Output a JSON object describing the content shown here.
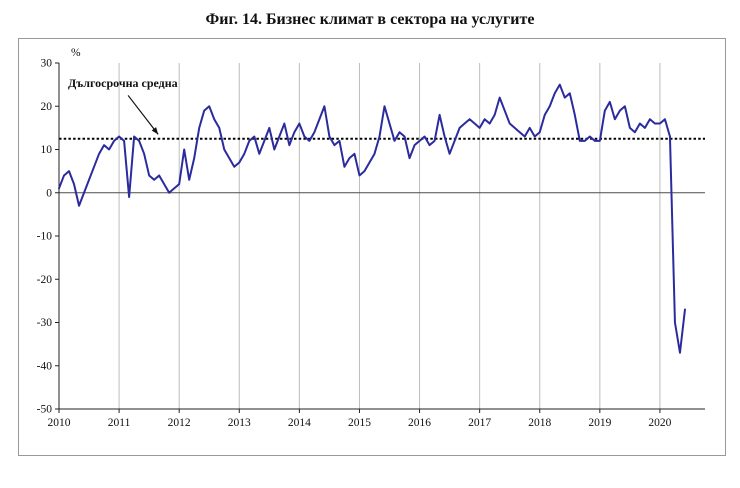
{
  "chart_data": {
    "type": "line",
    "title": "Фиг. 14. Бизнес климат в сектора на услугите",
    "unit_label": "%",
    "xlabel": "",
    "ylabel": "%",
    "ylim": [
      -50,
      30
    ],
    "xlim": [
      2010,
      2020.75
    ],
    "y_ticks": [
      30,
      20,
      10,
      0,
      -10,
      -20,
      -30,
      -40,
      -50
    ],
    "x_tick_labels": [
      "2010",
      "2011",
      "2012",
      "2013",
      "2014",
      "2015",
      "2016",
      "2017",
      "2018",
      "2019",
      "2020"
    ],
    "grid": "vertical-only",
    "legend_position": "none",
    "line_color": "#2b2b9e",
    "gridline_color": "#bdbdbd",
    "zero_line_color": "#4d4d4d",
    "average_line": {
      "label": "Дългосрочна средна",
      "value": 12.5,
      "style": "dashed",
      "color": "#000000"
    },
    "annotation": {
      "text": "Дългосрочна средна",
      "text_x": 2010.15,
      "text_y": 24.5,
      "arrow_from_x": 2011.15,
      "arrow_from_y": 22.5,
      "arrow_to_x": 2011.65,
      "arrow_to_y": 13.5
    },
    "series": [
      {
        "name": "Бизнес климат в сектора на услугите",
        "frequency": "monthly",
        "start_year": 2010,
        "values": [
          1,
          4,
          5,
          2,
          -3,
          0,
          3,
          6,
          9,
          11,
          10,
          12,
          13,
          12,
          -1,
          13,
          12,
          9,
          4,
          3,
          4,
          2,
          0,
          1,
          2,
          10,
          3,
          8,
          15,
          19,
          20,
          17,
          15,
          10,
          8,
          6,
          7,
          9,
          12,
          13,
          9,
          12,
          15,
          10,
          13,
          16,
          11,
          14,
          16,
          13,
          12,
          14,
          17,
          20,
          13,
          11,
          12,
          6,
          8,
          9,
          4,
          5,
          7,
          9,
          13,
          20,
          16,
          12,
          14,
          13,
          8,
          11,
          12,
          13,
          11,
          12,
          18,
          13,
          9,
          12,
          15,
          16,
          17,
          16,
          15,
          17,
          16,
          18,
          22,
          19,
          16,
          15,
          14,
          13,
          15,
          13,
          14,
          18,
          20,
          23,
          25,
          22,
          23,
          18,
          12,
          12,
          13,
          12,
          12,
          19,
          21,
          17,
          19,
          20,
          15,
          14,
          16,
          15,
          17,
          16,
          16,
          17,
          13,
          -30,
          -37,
          -27
        ]
      }
    ]
  }
}
